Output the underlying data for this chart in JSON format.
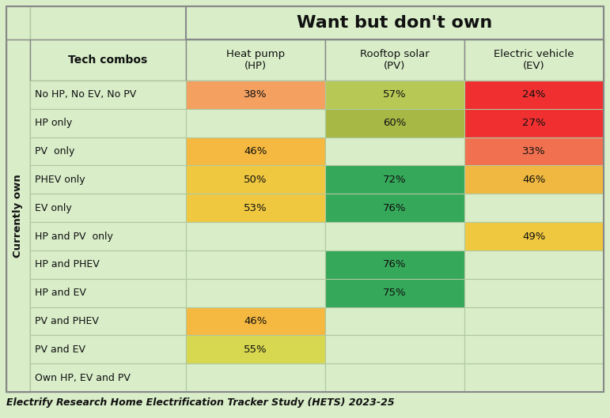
{
  "col_header_main": "Want but don't own",
  "col_headers": [
    "Heat pump\n(HP)",
    "Rooftop solar\n(PV)",
    "Electric vehicle\n(EV)"
  ],
  "row_header_main": "Currently own",
  "row_header_sub": "Tech combos",
  "rows": [
    "No HP, No EV, No PV",
    "HP only",
    "PV  only",
    "PHEV only",
    "EV only",
    "HP and PV  only",
    "HP and PHEV",
    "HP and EV",
    "PV and PHEV",
    "PV and EV",
    "Own HP, EV and PV"
  ],
  "cells": [
    [
      "38%",
      "57%",
      "24%"
    ],
    [
      null,
      "60%",
      "27%"
    ],
    [
      "46%",
      null,
      "33%"
    ],
    [
      "50%",
      "72%",
      "46%"
    ],
    [
      "53%",
      "76%",
      null
    ],
    [
      null,
      null,
      "49%"
    ],
    [
      null,
      "76%",
      null
    ],
    [
      null,
      "75%",
      null
    ],
    [
      "46%",
      null,
      null
    ],
    [
      "55%",
      null,
      null
    ],
    [
      null,
      null,
      null
    ]
  ],
  "cell_colors": [
    [
      "#f4a060",
      "#b8c855",
      "#f03030"
    ],
    [
      null,
      "#a8b845",
      "#f03030"
    ],
    [
      "#f5b840",
      null,
      "#f07050"
    ],
    [
      "#f0c840",
      "#35a85a",
      "#f0b840"
    ],
    [
      "#f0c840",
      "#35a85a",
      null
    ],
    [
      null,
      null,
      "#f0c840"
    ],
    [
      null,
      "#35a85a",
      null
    ],
    [
      null,
      "#35a85a",
      null
    ],
    [
      "#f5b840",
      null,
      null
    ],
    [
      "#d8d850",
      null,
      null
    ],
    [
      null,
      null,
      null
    ]
  ],
  "bg_color": "#d8edc8",
  "border_light": "#c0d8b0",
  "border_dark": "#a0c090",
  "footer_text": "Electrify Research Home Electrification Tracker Study (HETS) 2023-25"
}
